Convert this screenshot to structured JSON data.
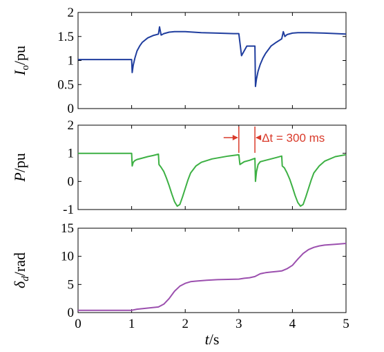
{
  "chart_data": [
    {
      "type": "line",
      "ylabel_main": "I",
      "ylabel_sub": "o",
      "ylabel_unit": "/pu",
      "ylim": [
        0,
        2
      ],
      "yticks": [
        "0",
        "0.5",
        "1",
        "1.5",
        "2"
      ],
      "xlim": [
        0,
        5
      ],
      "series": [
        {
          "color": "#1f3d9e",
          "x": [
            0,
            1.0,
            1.01,
            1.03,
            1.06,
            1.1,
            1.15,
            1.2,
            1.3,
            1.4,
            1.5,
            1.52,
            1.55,
            1.6,
            1.7,
            1.8,
            2.0,
            2.3,
            2.6,
            2.9,
            3.0,
            3.05,
            3.15,
            3.3,
            3.31,
            3.33,
            3.36,
            3.4,
            3.45,
            3.5,
            3.6,
            3.7,
            3.8,
            3.83,
            3.86,
            3.9,
            4.0,
            4.1,
            4.3,
            4.6,
            5.0
          ],
          "y": [
            1.02,
            1.02,
            0.75,
            0.9,
            1.05,
            1.2,
            1.3,
            1.38,
            1.47,
            1.52,
            1.55,
            1.7,
            1.53,
            1.56,
            1.59,
            1.6,
            1.6,
            1.58,
            1.57,
            1.56,
            1.56,
            1.1,
            1.3,
            1.3,
            0.46,
            0.62,
            0.78,
            0.92,
            1.05,
            1.15,
            1.3,
            1.38,
            1.45,
            1.6,
            1.5,
            1.54,
            1.57,
            1.58,
            1.58,
            1.57,
            1.55
          ]
        }
      ]
    },
    {
      "type": "line",
      "ylabel_main": "P",
      "ylabel_unit": "/pu",
      "ylim": [
        -1,
        2
      ],
      "yticks": [
        "-1",
        "0",
        "1",
        "2"
      ],
      "xlim": [
        0,
        5
      ],
      "annotation": "Δt = 300 ms",
      "annotation_color": "#d93a2a",
      "marker_x": [
        3.0,
        3.3
      ],
      "series": [
        {
          "color": "#3cb043",
          "x": [
            0,
            1.0,
            1.01,
            1.03,
            1.06,
            1.1,
            1.2,
            1.3,
            1.4,
            1.5,
            1.51,
            1.55,
            1.6,
            1.65,
            1.7,
            1.75,
            1.8,
            1.85,
            1.9,
            1.95,
            2.0,
            2.05,
            2.1,
            2.2,
            2.3,
            2.5,
            2.8,
            3.0,
            3.02,
            3.1,
            3.2,
            3.3,
            3.31,
            3.33,
            3.36,
            3.4,
            3.5,
            3.6,
            3.7,
            3.8,
            3.81,
            3.85,
            3.9,
            3.95,
            4.0,
            4.05,
            4.1,
            4.15,
            4.2,
            4.25,
            4.3,
            4.35,
            4.4,
            4.5,
            4.6,
            4.8,
            5.0
          ],
          "y": [
            1.0,
            1.0,
            0.55,
            0.68,
            0.74,
            0.78,
            0.83,
            0.88,
            0.92,
            0.97,
            0.6,
            0.5,
            0.35,
            0.12,
            -0.15,
            -0.45,
            -0.72,
            -0.88,
            -0.82,
            -0.55,
            -0.25,
            0.05,
            0.3,
            0.55,
            0.68,
            0.8,
            0.9,
            0.95,
            0.6,
            0.7,
            0.75,
            0.82,
            0.0,
            0.35,
            0.6,
            0.7,
            0.75,
            0.8,
            0.85,
            0.9,
            0.55,
            0.48,
            0.3,
            0.08,
            -0.2,
            -0.5,
            -0.75,
            -0.88,
            -0.82,
            -0.55,
            -0.25,
            0.05,
            0.3,
            0.55,
            0.72,
            0.88,
            0.95
          ]
        }
      ]
    },
    {
      "type": "line",
      "ylabel_main": "δ",
      "ylabel_sub": "d",
      "ylabel_unit": "/rad",
      "ylim": [
        0,
        15
      ],
      "yticks": [
        "0",
        "5",
        "10",
        "15"
      ],
      "xlim": [
        0,
        5
      ],
      "xticks": [
        "0",
        "1",
        "2",
        "3",
        "4",
        "5"
      ],
      "xlabel_main": "t",
      "xlabel_unit": "/s",
      "series": [
        {
          "color": "#9b4fae",
          "x": [
            0,
            0.5,
            1.0,
            1.1,
            1.3,
            1.5,
            1.6,
            1.7,
            1.8,
            1.9,
            2.0,
            2.1,
            2.2,
            2.4,
            2.6,
            2.8,
            3.0,
            3.1,
            3.2,
            3.3,
            3.4,
            3.5,
            3.6,
            3.7,
            3.8,
            3.9,
            4.0,
            4.1,
            4.2,
            4.3,
            4.4,
            4.5,
            4.6,
            4.8,
            5.0
          ],
          "y": [
            0.4,
            0.4,
            0.4,
            0.6,
            0.8,
            1.0,
            1.5,
            2.5,
            3.8,
            4.7,
            5.2,
            5.5,
            5.6,
            5.75,
            5.85,
            5.9,
            5.95,
            6.1,
            6.2,
            6.4,
            6.9,
            7.1,
            7.2,
            7.3,
            7.4,
            7.8,
            8.4,
            9.5,
            10.5,
            11.2,
            11.6,
            11.85,
            12.0,
            12.15,
            12.3
          ]
        }
      ]
    }
  ]
}
